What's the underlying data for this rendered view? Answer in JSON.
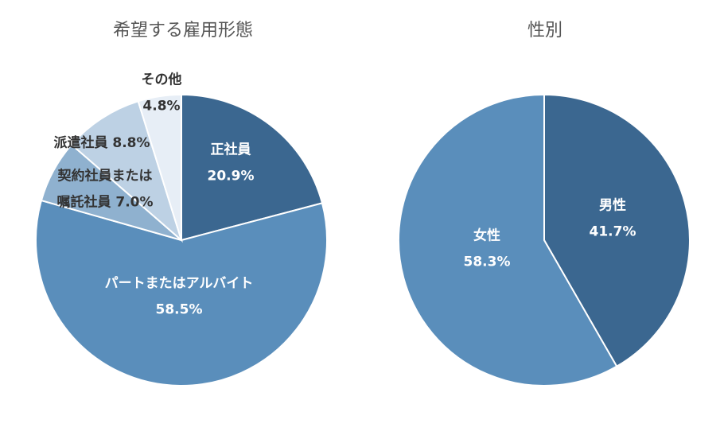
{
  "chart_data": [
    {
      "type": "pie",
      "title": "希望する雇用形態",
      "start_angle_deg": 0,
      "direction": "clockwise",
      "slices": [
        {
          "label_lines": [
            "正社員",
            "20.9%"
          ],
          "value": 20.9,
          "color": "#3b6790",
          "label_style": "inside"
        },
        {
          "label_lines": [
            "パートまたはアルバイト",
            "58.5%"
          ],
          "value": 58.5,
          "color": "#5a8ebb",
          "label_style": "inside"
        },
        {
          "label_lines": [
            "契約社員または",
            "嘱託社員 7.0%"
          ],
          "value": 7.0,
          "color": "#8fb1cf",
          "label_style": "outside"
        },
        {
          "label_lines": [
            "派遣社員 8.8%"
          ],
          "value": 8.8,
          "color": "#bdd1e4",
          "label_style": "outside"
        },
        {
          "label_lines": [
            "その他",
            "4.8%"
          ],
          "value": 4.8,
          "color": "#e7eef6",
          "label_style": "outside"
        }
      ]
    },
    {
      "type": "pie",
      "title": "性別",
      "start_angle_deg": 0,
      "direction": "clockwise",
      "slices": [
        {
          "label_lines": [
            "男性",
            "41.7%"
          ],
          "value": 41.7,
          "color": "#3b6790",
          "label_style": "inside"
        },
        {
          "label_lines": [
            "女性",
            "58.3%"
          ],
          "value": 58.3,
          "color": "#5a8ebb",
          "label_style": "inside"
        }
      ]
    }
  ]
}
